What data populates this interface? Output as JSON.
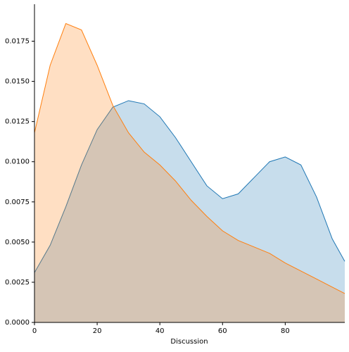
{
  "chart_data": {
    "type": "kde",
    "x_label": "Discussion",
    "x": [
      0,
      5,
      10,
      15,
      20,
      25,
      30,
      35,
      40,
      45,
      50,
      55,
      60,
      65,
      70,
      75,
      80,
      85,
      90,
      95,
      99
    ],
    "series": [
      {
        "color": "#1f77b4",
        "values": [
          0.0031,
          0.0048,
          0.0072,
          0.0098,
          0.012,
          0.0134,
          0.0138,
          0.0136,
          0.0128,
          0.0115,
          0.01,
          0.0085,
          0.0077,
          0.008,
          0.009,
          0.01,
          0.0103,
          0.0098,
          0.0078,
          0.0052,
          0.0038
        ]
      },
      {
        "color": "#ff7f0e",
        "values": [
          0.0118,
          0.016,
          0.0186,
          0.0182,
          0.016,
          0.0135,
          0.0118,
          0.0106,
          0.0098,
          0.0088,
          0.0076,
          0.0066,
          0.0057,
          0.0051,
          0.0047,
          0.0043,
          0.0037,
          0.0032,
          0.0027,
          0.0022,
          0.0018
        ]
      }
    ],
    "xlim": [
      0,
      99
    ],
    "ylim": [
      0,
      0.0198
    ],
    "xticks": [
      0,
      20,
      40,
      60,
      80
    ],
    "yticks": [
      {
        "value": 0,
        "label": "0.0000"
      },
      {
        "value": 0.0025,
        "label": "0.0025"
      },
      {
        "value": 0.005,
        "label": "0.0050"
      },
      {
        "value": 0.0075,
        "label": "0.0075"
      },
      {
        "value": 0.01,
        "label": "0.0100"
      },
      {
        "value": 0.0125,
        "label": "0.0125"
      },
      {
        "value": 0.015,
        "label": "0.0150"
      },
      {
        "value": 0.0175,
        "label": "0.0175"
      }
    ]
  }
}
